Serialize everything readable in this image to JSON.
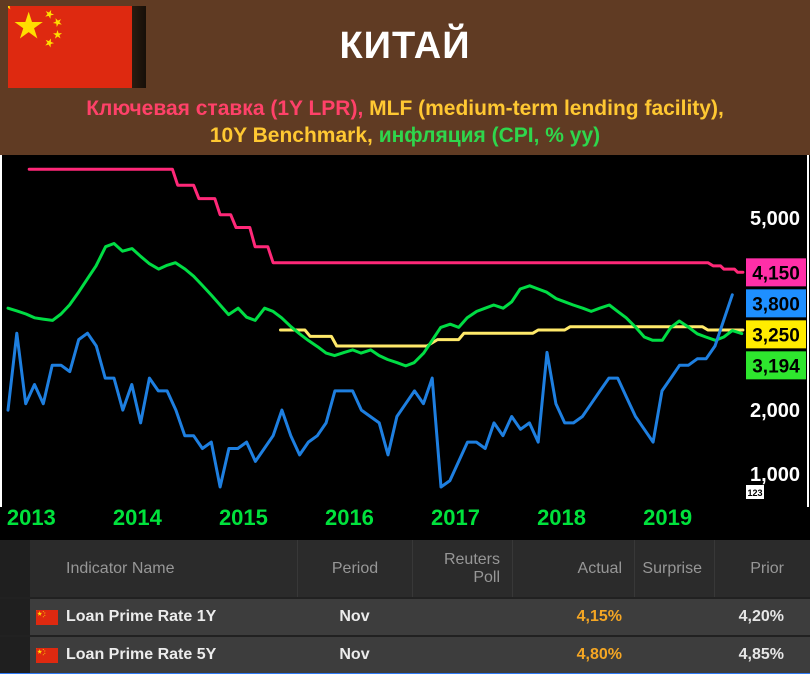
{
  "header": {
    "title": "КИТАЙ"
  },
  "legend": {
    "line1": [
      {
        "text": "Ключевая ставка (1Y LPR), ",
        "color": "#ff4169"
      },
      {
        "text": "MLF (medium-term lending facility),",
        "color": "#ffc832"
      }
    ],
    "line2": [
      {
        "text": "10Y Benchmark, ",
        "color": "#ffc832"
      },
      {
        "text": "инфляция (CPI, % yy)",
        "color": "#2fd64c"
      }
    ]
  },
  "chart_data": {
    "type": "line",
    "background": "#000000",
    "x_range": [
      2013.0,
      2019.95
    ],
    "y_range": [
      550,
      5950
    ],
    "x_tick_labels": [
      "2013",
      "2014",
      "2015",
      "2016",
      "2017",
      "2018",
      "2019"
    ],
    "x_tick_color": "#00e23c",
    "y_ticks": [
      {
        "value": 5000,
        "label": "5,000"
      },
      {
        "value": 2000,
        "label": "2,000"
      },
      {
        "value": 1000,
        "label": "1,000"
      }
    ],
    "y_tick_color": "#ffffff",
    "axis_icon_label": "123",
    "legend_position": "top",
    "grid": false,
    "last_value_chips": [
      {
        "label": "4,150",
        "value": 4150,
        "bg": "#ff2fa8",
        "fg": "#000000"
      },
      {
        "label": "3,800",
        "value": 3800,
        "bg": "#1e8fff",
        "fg": "#000000"
      },
      {
        "label": "3,250",
        "value": 3250,
        "bg": "#ffec00",
        "fg": "#000000"
      },
      {
        "label": "3,194",
        "value": 3194,
        "bg": "#2ee62e",
        "fg": "#000000"
      }
    ],
    "series": [
      {
        "name": "Key rate (1Y LPR)",
        "color": "#ff2878",
        "points": [
          [
            2013.2,
            5760
          ],
          [
            2014.55,
            5760
          ],
          [
            2014.6,
            5510
          ],
          [
            2014.75,
            5510
          ],
          [
            2014.8,
            5300
          ],
          [
            2014.95,
            5300
          ],
          [
            2015.0,
            5050
          ],
          [
            2015.1,
            5050
          ],
          [
            2015.15,
            4850
          ],
          [
            2015.28,
            4850
          ],
          [
            2015.33,
            4550
          ],
          [
            2015.45,
            4550
          ],
          [
            2015.5,
            4300
          ],
          [
            2019.6,
            4300
          ],
          [
            2019.65,
            4250
          ],
          [
            2019.72,
            4250
          ],
          [
            2019.75,
            4200
          ],
          [
            2019.85,
            4200
          ],
          [
            2019.88,
            4150
          ],
          [
            2019.93,
            4150
          ]
        ]
      },
      {
        "name": "MLF (medium-term lending facility)",
        "color": "#ffe96a",
        "points": [
          [
            2015.57,
            3250
          ],
          [
            2015.8,
            3250
          ],
          [
            2015.85,
            3150
          ],
          [
            2016.05,
            3150
          ],
          [
            2016.1,
            3000
          ],
          [
            2016.95,
            3000
          ],
          [
            2017.05,
            3100
          ],
          [
            2017.25,
            3100
          ],
          [
            2017.3,
            3200
          ],
          [
            2017.95,
            3200
          ],
          [
            2018.0,
            3250
          ],
          [
            2018.25,
            3250
          ],
          [
            2018.3,
            3300
          ],
          [
            2019.55,
            3300
          ],
          [
            2019.6,
            3250
          ],
          [
            2019.93,
            3250
          ]
        ]
      },
      {
        "name": "10Y Benchmark",
        "color": "#00dd44",
        "points": [
          [
            2013.0,
            3590
          ],
          [
            2013.08,
            3550
          ],
          [
            2013.17,
            3500
          ],
          [
            2013.25,
            3440
          ],
          [
            2013.33,
            3420
          ],
          [
            2013.42,
            3400
          ],
          [
            2013.5,
            3500
          ],
          [
            2013.58,
            3640
          ],
          [
            2013.67,
            3850
          ],
          [
            2013.75,
            4050
          ],
          [
            2013.83,
            4250
          ],
          [
            2013.92,
            4550
          ],
          [
            2014.0,
            4600
          ],
          [
            2014.08,
            4480
          ],
          [
            2014.17,
            4520
          ],
          [
            2014.25,
            4400
          ],
          [
            2014.33,
            4290
          ],
          [
            2014.42,
            4200
          ],
          [
            2014.5,
            4260
          ],
          [
            2014.58,
            4300
          ],
          [
            2014.67,
            4200
          ],
          [
            2014.75,
            4090
          ],
          [
            2014.83,
            3950
          ],
          [
            2014.92,
            3790
          ],
          [
            2015.0,
            3640
          ],
          [
            2015.08,
            3490
          ],
          [
            2015.17,
            3590
          ],
          [
            2015.25,
            3450
          ],
          [
            2015.33,
            3400
          ],
          [
            2015.42,
            3590
          ],
          [
            2015.5,
            3540
          ],
          [
            2015.58,
            3440
          ],
          [
            2015.67,
            3300
          ],
          [
            2015.75,
            3190
          ],
          [
            2015.83,
            3090
          ],
          [
            2015.92,
            2990
          ],
          [
            2016.0,
            2890
          ],
          [
            2016.08,
            2850
          ],
          [
            2016.17,
            2900
          ],
          [
            2016.25,
            2940
          ],
          [
            2016.33,
            2890
          ],
          [
            2016.42,
            2940
          ],
          [
            2016.5,
            2850
          ],
          [
            2016.58,
            2790
          ],
          [
            2016.67,
            2740
          ],
          [
            2016.75,
            2690
          ],
          [
            2016.83,
            2740
          ],
          [
            2016.92,
            2890
          ],
          [
            2017.0,
            3090
          ],
          [
            2017.08,
            3290
          ],
          [
            2017.17,
            3340
          ],
          [
            2017.25,
            3290
          ],
          [
            2017.33,
            3440
          ],
          [
            2017.42,
            3540
          ],
          [
            2017.5,
            3590
          ],
          [
            2017.58,
            3640
          ],
          [
            2017.67,
            3590
          ],
          [
            2017.75,
            3690
          ],
          [
            2017.83,
            3890
          ],
          [
            2017.92,
            3940
          ],
          [
            2018.0,
            3890
          ],
          [
            2018.08,
            3840
          ],
          [
            2018.17,
            3740
          ],
          [
            2018.25,
            3690
          ],
          [
            2018.33,
            3640
          ],
          [
            2018.42,
            3590
          ],
          [
            2018.5,
            3540
          ],
          [
            2018.58,
            3590
          ],
          [
            2018.67,
            3640
          ],
          [
            2018.75,
            3540
          ],
          [
            2018.83,
            3440
          ],
          [
            2018.92,
            3290
          ],
          [
            2019.0,
            3140
          ],
          [
            2019.08,
            3090
          ],
          [
            2019.17,
            3090
          ],
          [
            2019.25,
            3290
          ],
          [
            2019.33,
            3390
          ],
          [
            2019.42,
            3290
          ],
          [
            2019.5,
            3190
          ],
          [
            2019.58,
            3140
          ],
          [
            2019.67,
            3090
          ],
          [
            2019.75,
            3140
          ],
          [
            2019.83,
            3240
          ],
          [
            2019.92,
            3194
          ]
        ]
      },
      {
        "name": "CPI inflation (% yy)",
        "color": "#1e7fe0",
        "points": [
          [
            2013.0,
            2000
          ],
          [
            2013.083,
            3200
          ],
          [
            2013.167,
            2100
          ],
          [
            2013.25,
            2400
          ],
          [
            2013.333,
            2100
          ],
          [
            2013.417,
            2700
          ],
          [
            2013.5,
            2700
          ],
          [
            2013.583,
            2600
          ],
          [
            2013.667,
            3100
          ],
          [
            2013.75,
            3200
          ],
          [
            2013.833,
            3000
          ],
          [
            2013.917,
            2500
          ],
          [
            2014.0,
            2500
          ],
          [
            2014.083,
            2000
          ],
          [
            2014.167,
            2400
          ],
          [
            2014.25,
            1800
          ],
          [
            2014.333,
            2500
          ],
          [
            2014.417,
            2300
          ],
          [
            2014.5,
            2300
          ],
          [
            2014.583,
            2000
          ],
          [
            2014.667,
            1600
          ],
          [
            2014.75,
            1600
          ],
          [
            2014.833,
            1400
          ],
          [
            2014.917,
            1500
          ],
          [
            2015.0,
            800
          ],
          [
            2015.083,
            1400
          ],
          [
            2015.167,
            1400
          ],
          [
            2015.25,
            1500
          ],
          [
            2015.333,
            1200
          ],
          [
            2015.417,
            1400
          ],
          [
            2015.5,
            1600
          ],
          [
            2015.583,
            2000
          ],
          [
            2015.667,
            1600
          ],
          [
            2015.75,
            1300
          ],
          [
            2015.833,
            1500
          ],
          [
            2015.917,
            1600
          ],
          [
            2016.0,
            1800
          ],
          [
            2016.083,
            2300
          ],
          [
            2016.167,
            2300
          ],
          [
            2016.25,
            2300
          ],
          [
            2016.333,
            2000
          ],
          [
            2016.417,
            1900
          ],
          [
            2016.5,
            1800
          ],
          [
            2016.583,
            1300
          ],
          [
            2016.667,
            1900
          ],
          [
            2016.75,
            2100
          ],
          [
            2016.833,
            2300
          ],
          [
            2016.917,
            2100
          ],
          [
            2017.0,
            2500
          ],
          [
            2017.083,
            800
          ],
          [
            2017.167,
            900
          ],
          [
            2017.25,
            1200
          ],
          [
            2017.333,
            1500
          ],
          [
            2017.417,
            1500
          ],
          [
            2017.5,
            1400
          ],
          [
            2017.583,
            1800
          ],
          [
            2017.667,
            1600
          ],
          [
            2017.75,
            1900
          ],
          [
            2017.833,
            1700
          ],
          [
            2017.917,
            1800
          ],
          [
            2018.0,
            1500
          ],
          [
            2018.083,
            2900
          ],
          [
            2018.167,
            2100
          ],
          [
            2018.25,
            1800
          ],
          [
            2018.333,
            1800
          ],
          [
            2018.417,
            1900
          ],
          [
            2018.5,
            2100
          ],
          [
            2018.583,
            2300
          ],
          [
            2018.667,
            2500
          ],
          [
            2018.75,
            2500
          ],
          [
            2018.833,
            2200
          ],
          [
            2018.917,
            1900
          ],
          [
            2019.0,
            1700
          ],
          [
            2019.083,
            1500
          ],
          [
            2019.167,
            2300
          ],
          [
            2019.25,
            2500
          ],
          [
            2019.333,
            2700
          ],
          [
            2019.417,
            2700
          ],
          [
            2019.5,
            2800
          ],
          [
            2019.583,
            2800
          ],
          [
            2019.667,
            3000
          ],
          [
            2019.83,
            3800
          ]
        ]
      }
    ]
  },
  "table": {
    "headers": [
      "Indicator Name",
      "Period",
      "Reuters Poll",
      "Actual",
      "Surprise",
      "Prior"
    ],
    "rows": [
      {
        "flag": "china",
        "name": "Loan Prime Rate 1Y",
        "period": "Nov",
        "reuters_poll": "",
        "actual": "4,15%",
        "surprise": "",
        "prior": "4,20%"
      },
      {
        "flag": "china",
        "name": "Loan Prime Rate 5Y",
        "period": "Nov",
        "reuters_poll": "",
        "actual": "4,80%",
        "surprise": "",
        "prior": "4,85%"
      }
    ]
  },
  "colors": {
    "actual_value": "#f5a623",
    "prior_value": "#e6e6e6",
    "bottom_strip": "#2f7bf6",
    "flag_red": "#de2910",
    "flag_yellow": "#ffde00"
  }
}
